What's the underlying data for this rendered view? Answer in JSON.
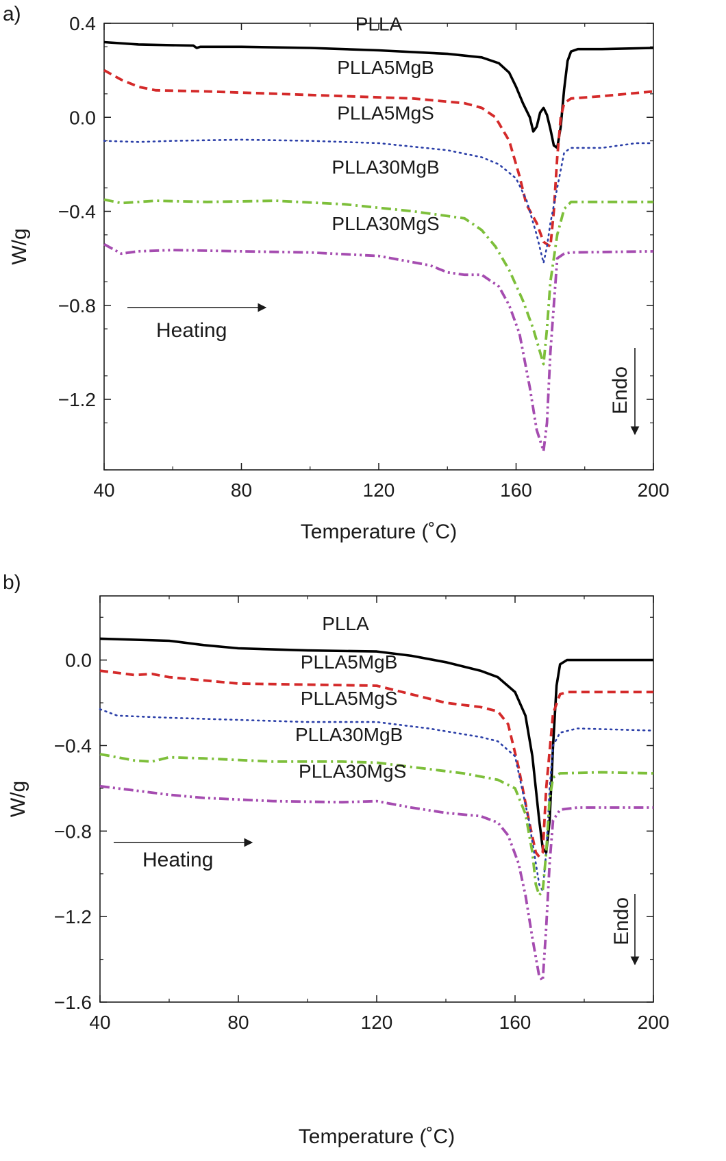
{
  "chart_data": [
    {
      "panel_label": "a)",
      "type": "line",
      "xlabel": "Temperature (˚C)",
      "ylabel": "W/g",
      "xlim": [
        40,
        200
      ],
      "ylim": [
        -1.5,
        0.4
      ],
      "xticks": [
        40,
        80,
        120,
        160,
        200
      ],
      "xtick_labels": [
        "40",
        "80",
        "120",
        "160",
        "200"
      ],
      "yticks": [
        0.4,
        0.0,
        -0.4,
        -0.8,
        -1.2
      ],
      "ytick_labels": [
        "0.4",
        "0.0",
        "−0.4",
        "−0.8",
        "−1.2"
      ],
      "grid": false,
      "annotations": {
        "heating": "Heating",
        "endo": "Endo"
      },
      "series": [
        {
          "name": "PLLA",
          "color": "#000000",
          "style": "solid",
          "label_at": [
            120,
            0.37
          ],
          "points": [
            [
              40,
              0.32
            ],
            [
              50,
              0.31
            ],
            [
              66,
              0.305
            ],
            [
              67,
              0.295
            ],
            [
              68,
              0.3
            ],
            [
              80,
              0.3
            ],
            [
              100,
              0.295
            ],
            [
              120,
              0.285
            ],
            [
              140,
              0.27
            ],
            [
              150,
              0.255
            ],
            [
              155,
              0.23
            ],
            [
              158,
              0.19
            ],
            [
              160,
              0.13
            ],
            [
              162,
              0.06
            ],
            [
              164,
              0.0
            ],
            [
              165,
              -0.06
            ],
            [
              166,
              -0.04
            ],
            [
              167,
              0.02
            ],
            [
              168,
              0.04
            ],
            [
              169,
              0.01
            ],
            [
              170,
              -0.05
            ],
            [
              171,
              -0.12
            ],
            [
              172,
              -0.13
            ],
            [
              173,
              -0.04
            ],
            [
              174,
              0.12
            ],
            [
              175,
              0.24
            ],
            [
              176,
              0.28
            ],
            [
              178,
              0.29
            ],
            [
              185,
              0.29
            ],
            [
              200,
              0.295
            ]
          ]
        },
        {
          "name": "PLLA5MgB",
          "color": "#d42a2a",
          "style": "dashed",
          "label_at": [
            122,
            0.185
          ],
          "points": [
            [
              40,
              0.2
            ],
            [
              45,
              0.16
            ],
            [
              50,
              0.13
            ],
            [
              55,
              0.115
            ],
            [
              70,
              0.11
            ],
            [
              90,
              0.1
            ],
            [
              110,
              0.09
            ],
            [
              130,
              0.08
            ],
            [
              145,
              0.06
            ],
            [
              150,
              0.04
            ],
            [
              154,
              0.0
            ],
            [
              158,
              -0.1
            ],
            [
              161,
              -0.25
            ],
            [
              163,
              -0.37
            ],
            [
              166,
              -0.45
            ],
            [
              168,
              -0.53
            ],
            [
              170,
              -0.55
            ],
            [
              171,
              -0.4
            ],
            [
              172,
              -0.17
            ],
            [
              173,
              0.0
            ],
            [
              174,
              0.06
            ],
            [
              176,
              0.08
            ],
            [
              185,
              0.09
            ],
            [
              200,
              0.11
            ]
          ]
        },
        {
          "name": "PLLA5MgS",
          "color": "#2b3fa8",
          "style": "dotted",
          "label_at": [
            122,
            -0.01
          ],
          "points": [
            [
              40,
              -0.1
            ],
            [
              50,
              -0.105
            ],
            [
              60,
              -0.1
            ],
            [
              80,
              -0.095
            ],
            [
              100,
              -0.1
            ],
            [
              120,
              -0.11
            ],
            [
              140,
              -0.14
            ],
            [
              150,
              -0.17
            ],
            [
              155,
              -0.2
            ],
            [
              160,
              -0.26
            ],
            [
              163,
              -0.35
            ],
            [
              166,
              -0.5
            ],
            [
              168,
              -0.62
            ],
            [
              169,
              -0.55
            ],
            [
              170,
              -0.45
            ],
            [
              172,
              -0.3
            ],
            [
              174,
              -0.15
            ],
            [
              176,
              -0.13
            ],
            [
              185,
              -0.13
            ],
            [
              195,
              -0.11
            ],
            [
              200,
              -0.11
            ]
          ]
        },
        {
          "name": "PLLA30MgB",
          "color": "#7dbf3a",
          "style": "dashdot",
          "label_at": [
            122,
            -0.24
          ],
          "points": [
            [
              40,
              -0.35
            ],
            [
              45,
              -0.365
            ],
            [
              55,
              -0.355
            ],
            [
              70,
              -0.36
            ],
            [
              90,
              -0.355
            ],
            [
              110,
              -0.37
            ],
            [
              130,
              -0.4
            ],
            [
              145,
              -0.43
            ],
            [
              150,
              -0.48
            ],
            [
              154,
              -0.55
            ],
            [
              158,
              -0.65
            ],
            [
              162,
              -0.78
            ],
            [
              165,
              -0.9
            ],
            [
              168,
              -1.05
            ],
            [
              169,
              -0.9
            ],
            [
              170,
              -0.7
            ],
            [
              172,
              -0.5
            ],
            [
              174,
              -0.39
            ],
            [
              176,
              -0.36
            ],
            [
              190,
              -0.36
            ],
            [
              200,
              -0.36
            ]
          ]
        },
        {
          "name": "PLLA30MgS",
          "color": "#a54cb0",
          "style": "dashdotdot",
          "label_at": [
            122,
            -0.48
          ],
          "points": [
            [
              40,
              -0.54
            ],
            [
              45,
              -0.58
            ],
            [
              50,
              -0.57
            ],
            [
              60,
              -0.565
            ],
            [
              80,
              -0.57
            ],
            [
              100,
              -0.575
            ],
            [
              120,
              -0.59
            ],
            [
              135,
              -0.63
            ],
            [
              140,
              -0.66
            ],
            [
              145,
              -0.67
            ],
            [
              150,
              -0.67
            ],
            [
              155,
              -0.72
            ],
            [
              158,
              -0.8
            ],
            [
              161,
              -0.92
            ],
            [
              164,
              -1.15
            ],
            [
              166,
              -1.33
            ],
            [
              168,
              -1.42
            ],
            [
              169,
              -1.3
            ],
            [
              170,
              -1.0
            ],
            [
              171,
              -0.8
            ],
            [
              172,
              -0.6
            ],
            [
              174,
              -0.58
            ],
            [
              176,
              -0.575
            ],
            [
              200,
              -0.57
            ]
          ]
        }
      ]
    },
    {
      "panel_label": "b)",
      "type": "line",
      "xlabel": "Temperature (˚C)",
      "ylabel": "W/g",
      "xlim": [
        40,
        200
      ],
      "ylim": [
        -1.6,
        0.3
      ],
      "xticks": [
        40,
        80,
        120,
        160,
        200
      ],
      "xtick_labels": [
        "40",
        "80",
        "120",
        "160",
        "200"
      ],
      "yticks": [
        0.0,
        -0.4,
        -0.8,
        -1.2,
        -1.6
      ],
      "ytick_labels": [
        "0.0",
        "−0.4",
        "−0.8",
        "−1.2",
        "−1.6"
      ],
      "grid": false,
      "annotations": {
        "heating": "Heating",
        "endo": "Endo"
      },
      "series": [
        {
          "name": "PLLA",
          "color": "#000000",
          "style": "solid",
          "label_at": [
            111,
            0.14
          ],
          "points": [
            [
              40,
              0.1
            ],
            [
              60,
              0.09
            ],
            [
              70,
              0.07
            ],
            [
              80,
              0.055
            ],
            [
              100,
              0.045
            ],
            [
              120,
              0.04
            ],
            [
              130,
              0.02
            ],
            [
              140,
              -0.01
            ],
            [
              150,
              -0.05
            ],
            [
              155,
              -0.08
            ],
            [
              160,
              -0.15
            ],
            [
              163,
              -0.26
            ],
            [
              165,
              -0.45
            ],
            [
              167,
              -0.75
            ],
            [
              168,
              -0.88
            ],
            [
              169,
              -0.9
            ],
            [
              170,
              -0.75
            ],
            [
              171,
              -0.4
            ],
            [
              172,
              -0.12
            ],
            [
              173,
              -0.02
            ],
            [
              175,
              0.0
            ],
            [
              200,
              0.0
            ]
          ]
        },
        {
          "name": "PLLA5MgB",
          "color": "#d42a2a",
          "style": "dashed",
          "label_at": [
            112,
            -0.04
          ],
          "points": [
            [
              40,
              -0.05
            ],
            [
              50,
              -0.07
            ],
            [
              55,
              -0.065
            ],
            [
              60,
              -0.08
            ],
            [
              80,
              -0.11
            ],
            [
              100,
              -0.115
            ],
            [
              120,
              -0.12
            ],
            [
              130,
              -0.16
            ],
            [
              140,
              -0.2
            ],
            [
              150,
              -0.22
            ],
            [
              155,
              -0.24
            ],
            [
              158,
              -0.3
            ],
            [
              161,
              -0.5
            ],
            [
              164,
              -0.75
            ],
            [
              166,
              -0.9
            ],
            [
              167,
              -0.92
            ],
            [
              168,
              -0.9
            ],
            [
              169,
              -0.6
            ],
            [
              171,
              -0.25
            ],
            [
              173,
              -0.16
            ],
            [
              175,
              -0.15
            ],
            [
              200,
              -0.15
            ]
          ]
        },
        {
          "name": "PLLA5MgS",
          "color": "#2b3fa8",
          "style": "dotted",
          "label_at": [
            112,
            -0.21
          ],
          "points": [
            [
              40,
              -0.23
            ],
            [
              45,
              -0.26
            ],
            [
              60,
              -0.27
            ],
            [
              80,
              -0.28
            ],
            [
              100,
              -0.29
            ],
            [
              120,
              -0.29
            ],
            [
              135,
              -0.32
            ],
            [
              150,
              -0.36
            ],
            [
              155,
              -0.38
            ],
            [
              160,
              -0.45
            ],
            [
              164,
              -0.75
            ],
            [
              166,
              -0.95
            ],
            [
              167,
              -1.05
            ],
            [
              168,
              -1.08
            ],
            [
              169,
              -0.9
            ],
            [
              170,
              -0.6
            ],
            [
              171,
              -0.4
            ],
            [
              173,
              -0.34
            ],
            [
              178,
              -0.32
            ],
            [
              200,
              -0.33
            ]
          ]
        },
        {
          "name": "PLLA30MgB",
          "color": "#7dbf3a",
          "style": "dashdot",
          "label_at": [
            112,
            -0.38
          ],
          "points": [
            [
              40,
              -0.44
            ],
            [
              50,
              -0.47
            ],
            [
              55,
              -0.475
            ],
            [
              60,
              -0.455
            ],
            [
              70,
              -0.46
            ],
            [
              90,
              -0.475
            ],
            [
              110,
              -0.475
            ],
            [
              120,
              -0.48
            ],
            [
              130,
              -0.5
            ],
            [
              145,
              -0.53
            ],
            [
              155,
              -0.56
            ],
            [
              160,
              -0.6
            ],
            [
              163,
              -0.72
            ],
            [
              165,
              -0.9
            ],
            [
              166,
              -1.05
            ],
            [
              167,
              -1.1
            ],
            [
              168,
              -1.08
            ],
            [
              169,
              -0.9
            ],
            [
              170,
              -0.65
            ],
            [
              171,
              -0.55
            ],
            [
              173,
              -0.53
            ],
            [
              185,
              -0.525
            ],
            [
              200,
              -0.53
            ]
          ]
        },
        {
          "name": "PLLA30MgS",
          "color": "#a54cb0",
          "style": "dashdotdot",
          "label_at": [
            113,
            -0.55
          ],
          "points": [
            [
              40,
              -0.59
            ],
            [
              50,
              -0.61
            ],
            [
              60,
              -0.63
            ],
            [
              70,
              -0.645
            ],
            [
              90,
              -0.66
            ],
            [
              110,
              -0.665
            ],
            [
              120,
              -0.66
            ],
            [
              130,
              -0.69
            ],
            [
              140,
              -0.715
            ],
            [
              150,
              -0.73
            ],
            [
              155,
              -0.76
            ],
            [
              158,
              -0.82
            ],
            [
              161,
              -0.95
            ],
            [
              163,
              -1.1
            ],
            [
              165,
              -1.3
            ],
            [
              167,
              -1.48
            ],
            [
              168,
              -1.5
            ],
            [
              169,
              -1.25
            ],
            [
              170,
              -0.95
            ],
            [
              171,
              -0.75
            ],
            [
              173,
              -0.7
            ],
            [
              178,
              -0.69
            ],
            [
              200,
              -0.69
            ]
          ]
        }
      ]
    }
  ]
}
